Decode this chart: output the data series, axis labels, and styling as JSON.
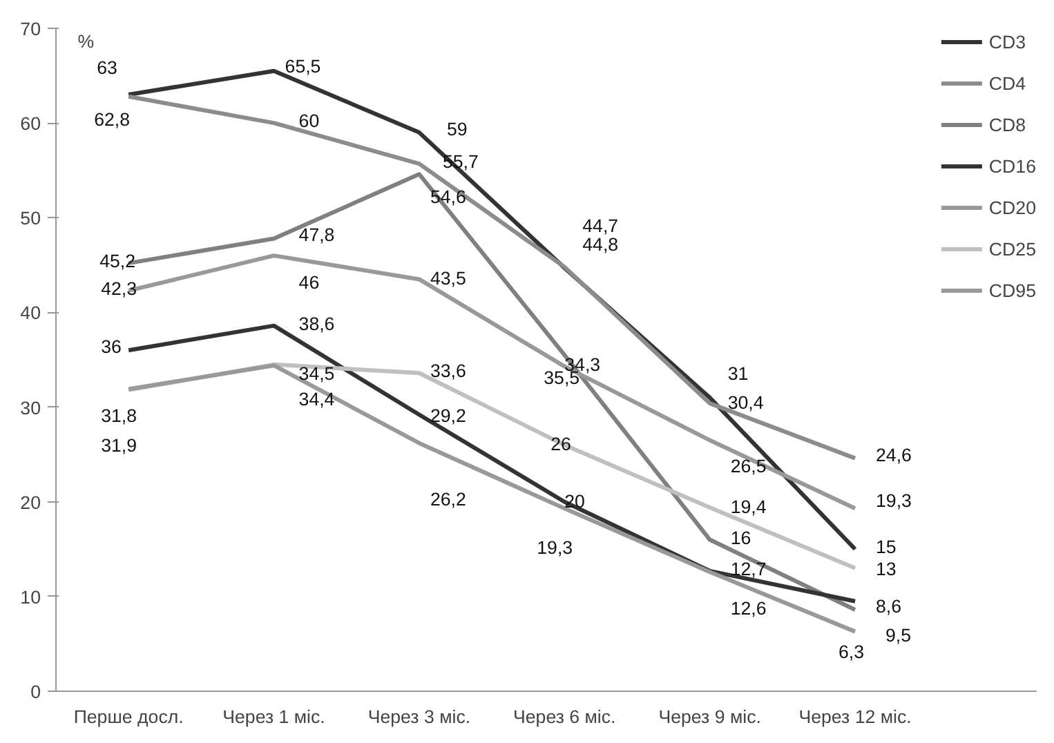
{
  "chart_data": {
    "type": "line",
    "ylabel": "%",
    "categories": [
      "Перше досл.",
      "Через 1 міс.",
      "Через 3 міс.",
      "Через 6 міс.",
      "Через 9 міс.",
      "Через 12 міс."
    ],
    "ylim": [
      0,
      70
    ],
    "yticks": [
      0,
      10,
      20,
      30,
      40,
      50,
      60,
      70
    ],
    "grid": false,
    "legend": "right",
    "marker": "none",
    "line_style": "solid",
    "series": [
      {
        "name": "CD3",
        "color": "#333333",
        "values": [
          63,
          65.5,
          59,
          44.7,
          31,
          15
        ],
        "value_labels": [
          "63",
          "65,5",
          "59",
          "44,7",
          "31",
          "15"
        ]
      },
      {
        "name": "CD4",
        "color": "#8c8c8c",
        "values": [
          62.8,
          60,
          55.7,
          44.8,
          30.4,
          24.6
        ],
        "value_labels": [
          "62,8",
          "60",
          "55,7",
          "44,8",
          "30,4",
          "24,6"
        ]
      },
      {
        "name": "CD8",
        "color": "#808080",
        "values": [
          45.2,
          47.8,
          54.6,
          35.5,
          16,
          8.6
        ],
        "value_labels": [
          "45,2",
          "47,8",
          "54,6",
          "35,5",
          "16",
          "8,6"
        ]
      },
      {
        "name": "CD16",
        "color": "#333333",
        "values": [
          36,
          38.6,
          29.2,
          20,
          12.7,
          9.5
        ],
        "value_labels": [
          "36",
          "38,6",
          "29,2",
          "20",
          "12,7",
          "9,5"
        ]
      },
      {
        "name": "CD20",
        "color": "#999999",
        "values": [
          42.3,
          46,
          43.5,
          34.3,
          26.5,
          19.3
        ],
        "value_labels": [
          "42,3",
          "46",
          "43,5",
          "34,3",
          "26,5",
          "19,3"
        ]
      },
      {
        "name": "CD25",
        "color": "#c0c0c0",
        "values": [
          31.8,
          34.5,
          33.6,
          26,
          19.4,
          13
        ],
        "value_labels": [
          "31,8",
          "34,5",
          "33,6",
          "26",
          "19,4",
          "13"
        ]
      },
      {
        "name": "CD95",
        "color": "#999999",
        "values": [
          31.9,
          34.4,
          26.2,
          19.3,
          12.6,
          6.3
        ],
        "value_labels": [
          "31,9",
          "34,4",
          "26,2",
          "19,3",
          "12,6",
          "6,3"
        ]
      }
    ]
  }
}
